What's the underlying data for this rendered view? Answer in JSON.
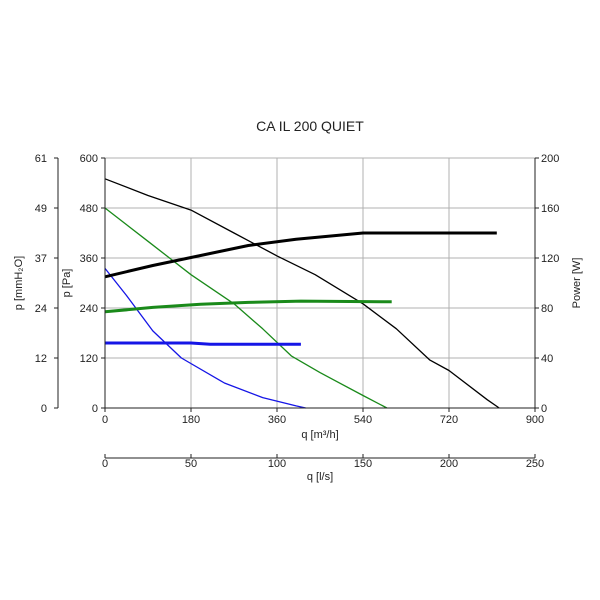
{
  "chart_data": {
    "type": "line",
    "title": "CA IL 200 QUIET",
    "grid": true,
    "x_axis_main": {
      "label": "q [m³/h]",
      "range": [
        0,
        900
      ],
      "ticks": [
        "0",
        "180",
        "360",
        "540",
        "720",
        "900"
      ],
      "tick_values": [
        0,
        180,
        360,
        540,
        720,
        900
      ]
    },
    "x_axis_secondary": {
      "label": "q [l/s]",
      "range": [
        0,
        250
      ],
      "ticks": [
        "0",
        "50",
        "100",
        "150",
        "200",
        "250"
      ],
      "tick_values": [
        0,
        50,
        100,
        150,
        200,
        250
      ]
    },
    "y_axis_pa": {
      "label": "p [Pa]",
      "range": [
        0,
        600
      ],
      "ticks": [
        "0",
        "120",
        "240",
        "360",
        "480",
        "600"
      ],
      "tick_values": [
        0,
        120,
        240,
        360,
        480,
        600
      ]
    },
    "y_axis_mmh2o": {
      "label": "p [mmH₂O]",
      "ticks": [
        "0",
        "12",
        "24",
        "37",
        "49",
        "61"
      ]
    },
    "y_axis_power": {
      "label": "Power [W]",
      "range": [
        0,
        200
      ],
      "ticks": [
        "0",
        "40",
        "80",
        "120",
        "160",
        "200"
      ],
      "tick_values": [
        0,
        40,
        80,
        120,
        160,
        200
      ]
    },
    "series": [
      {
        "axis": "pressure",
        "color": "#000000",
        "width": 1.3,
        "points": [
          [
            0,
            550
          ],
          [
            90,
            510
          ],
          [
            180,
            475
          ],
          [
            270,
            420
          ],
          [
            360,
            365
          ],
          [
            440,
            320
          ],
          [
            540,
            250
          ],
          [
            610,
            190
          ],
          [
            680,
            115
          ],
          [
            720,
            90
          ],
          [
            800,
            20
          ],
          [
            825,
            0
          ]
        ]
      },
      {
        "axis": "pressure",
        "color": "#1a8a1a",
        "width": 1.3,
        "points": [
          [
            0,
            480
          ],
          [
            90,
            400
          ],
          [
            180,
            320
          ],
          [
            270,
            250
          ],
          [
            330,
            190
          ],
          [
            390,
            125
          ],
          [
            450,
            85
          ],
          [
            540,
            30
          ],
          [
            590,
            0
          ]
        ]
      },
      {
        "axis": "pressure",
        "color": "#1515e6",
        "width": 1.3,
        "points": [
          [
            0,
            335
          ],
          [
            45,
            270
          ],
          [
            100,
            185
          ],
          [
            160,
            120
          ],
          [
            250,
            60
          ],
          [
            330,
            25
          ],
          [
            400,
            5
          ],
          [
            420,
            0
          ]
        ]
      },
      {
        "axis": "power",
        "color": "#000000",
        "width": 3,
        "points": [
          [
            0,
            105
          ],
          [
            100,
            114
          ],
          [
            200,
            122
          ],
          [
            300,
            130
          ],
          [
            400,
            135
          ],
          [
            540,
            140
          ],
          [
            820,
            140
          ]
        ]
      },
      {
        "axis": "power",
        "color": "#1a8a1a",
        "width": 3,
        "points": [
          [
            0,
            77
          ],
          [
            100,
            80.5
          ],
          [
            200,
            83
          ],
          [
            300,
            84.5
          ],
          [
            410,
            85.5
          ],
          [
            600,
            85
          ]
        ]
      },
      {
        "axis": "power",
        "color": "#1515e6",
        "width": 3,
        "points": [
          [
            0,
            52
          ],
          [
            180,
            52
          ],
          [
            220,
            51
          ],
          [
            410,
            51
          ]
        ]
      }
    ]
  }
}
